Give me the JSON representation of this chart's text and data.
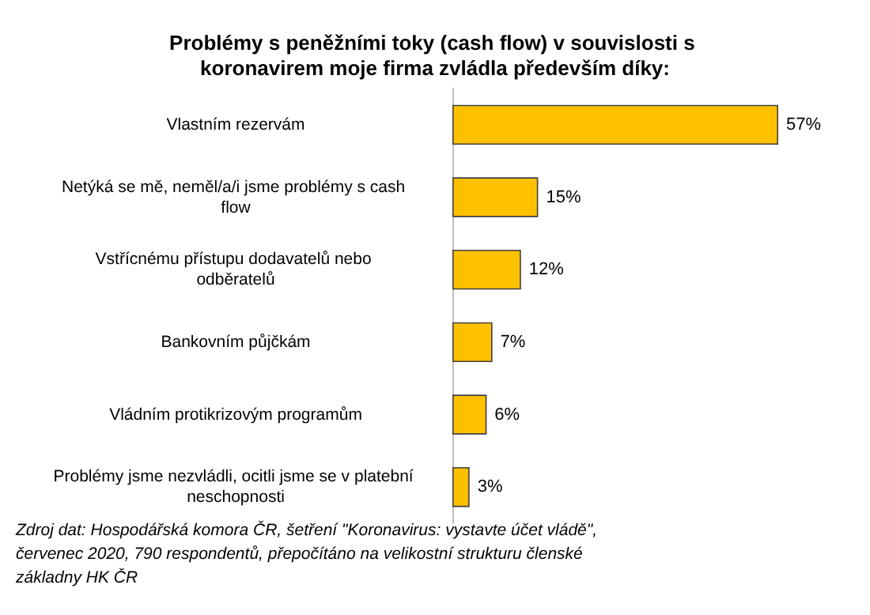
{
  "chart_data": {
    "type": "bar",
    "orientation": "horizontal",
    "title": "Problémy s peněžními toky (cash flow) v souvislosti s koronavirem moje firma zvládla především díky:",
    "categories": [
      "Vlastním rezervám",
      "Netýká se mě, neměl/a/i jsme problémy s cash flow",
      "Vstřícnému přístupu dodavatelů nebo odběratelů",
      "Bankovním půjčkám",
      "Vládním protikrizovým programům",
      "Problémy jsme nezvládli, ocitli jsme se v platební neschopnosti"
    ],
    "values": [
      57,
      15,
      12,
      7,
      6,
      3
    ],
    "value_labels": [
      "57%",
      "15%",
      "12%",
      "7%",
      "6%",
      "3%"
    ],
    "color": "#ffc000",
    "annotations": [
      "Zdroj dat: Hospodářská komora ČR, šetření \"Koronavirus: vystavte účet vládě\", červenec 2020, 790 respondentů, přepočítáno na velikostní strukturu členské základny HK ČR"
    ]
  }
}
